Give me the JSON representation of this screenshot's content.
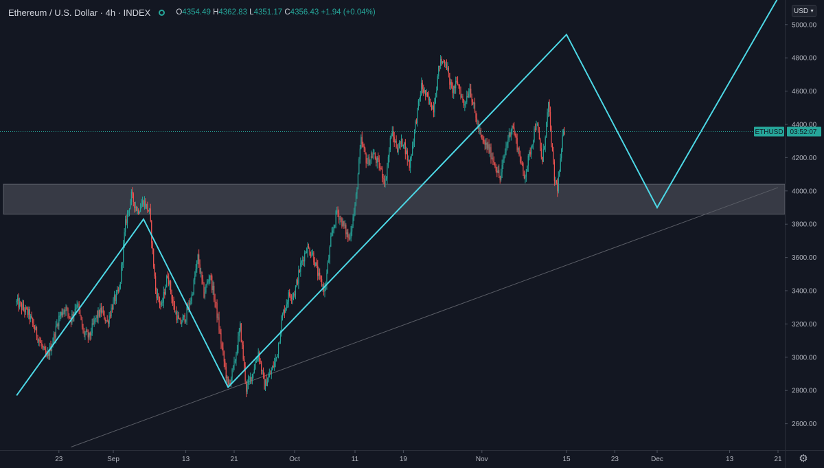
{
  "legend": {
    "symbol": "Ethereum / U.S. Dollar · 4h · INDEX",
    "open_label": "O",
    "open": "4354.49",
    "high_label": "H",
    "high": "4362.83",
    "low_label": "L",
    "low": "4351.17",
    "close_label": "C",
    "close": "4356.43",
    "change": "+1.94 (+0.04%)"
  },
  "currency_button": "USD",
  "settings_icon": "gear-icon",
  "price_tag": {
    "symbol": "ETHUSD",
    "countdown": "03:52:07",
    "color": "#26a69a"
  },
  "colors": {
    "background": "#131722",
    "up": "#26a69a",
    "down": "#ef5350",
    "zigzag": "#4dd8e6",
    "support_zone": "#3e414b",
    "trendline": "#5a5d66"
  },
  "chart_data": {
    "type": "candlestick",
    "symbol": "ETHUSD",
    "timeframe": "4h",
    "y_ticks": [
      "2600.00",
      "2800.00",
      "3000.00",
      "3200.00",
      "3400.00",
      "3600.00",
      "3800.00",
      "4000.00",
      "4200.00",
      "4400.00",
      "4600.00",
      "4800.00",
      "5000.00"
    ],
    "ylim": [
      2460,
      5145
    ],
    "x_ticks": [
      {
        "label": "23",
        "day": -9
      },
      {
        "label": "Sep",
        "day": 0
      },
      {
        "label": "13",
        "day": 12
      },
      {
        "label": "21",
        "day": 20
      },
      {
        "label": "Oct",
        "day": 30
      },
      {
        "label": "11",
        "day": 40
      },
      {
        "label": "19",
        "day": 48
      },
      {
        "label": "Nov",
        "day": 61
      },
      {
        "label": "15",
        "day": 75
      },
      {
        "label": "23",
        "day": 83
      },
      {
        "label": "Dec",
        "day": 90
      },
      {
        "label": "13",
        "day": 102
      },
      {
        "label": "21",
        "day": 110
      }
    ],
    "last_price": 4356.43,
    "price_path": [
      [
        -16,
        3330
      ],
      [
        -14,
        3260
      ],
      [
        -12,
        3080
      ],
      [
        -11,
        2990
      ],
      [
        -10,
        3100
      ],
      [
        -9,
        3240
      ],
      [
        -8,
        3300
      ],
      [
        -7,
        3230
      ],
      [
        -6,
        3330
      ],
      [
        -5,
        3150
      ],
      [
        -4,
        3120
      ],
      [
        -3,
        3230
      ],
      [
        -2,
        3280
      ],
      [
        -1,
        3210
      ],
      [
        0,
        3330
      ],
      [
        1,
        3400
      ],
      [
        2,
        3800
      ],
      [
        3,
        3970
      ],
      [
        4,
        3880
      ],
      [
        5,
        3940
      ],
      [
        6,
        3870
      ],
      [
        7,
        3400
      ],
      [
        8,
        3300
      ],
      [
        9,
        3500
      ],
      [
        10,
        3300
      ],
      [
        11,
        3200
      ],
      [
        12,
        3250
      ],
      [
        13,
        3370
      ],
      [
        14,
        3600
      ],
      [
        15,
        3380
      ],
      [
        16,
        3500
      ],
      [
        17,
        3300
      ],
      [
        18,
        3050
      ],
      [
        19,
        2820
      ],
      [
        20,
        2950
      ],
      [
        21,
        3180
      ],
      [
        22,
        2810
      ],
      [
        23,
        2900
      ],
      [
        24,
        3030
      ],
      [
        25,
        2830
      ],
      [
        26,
        2900
      ],
      [
        27,
        3000
      ],
      [
        28,
        3250
      ],
      [
        29,
        3370
      ],
      [
        30,
        3390
      ],
      [
        31,
        3550
      ],
      [
        32,
        3660
      ],
      [
        33,
        3620
      ],
      [
        34,
        3480
      ],
      [
        35,
        3400
      ],
      [
        36,
        3700
      ],
      [
        37,
        3880
      ],
      [
        38,
        3800
      ],
      [
        39,
        3710
      ],
      [
        40,
        3900
      ],
      [
        41,
        4300
      ],
      [
        42,
        4170
      ],
      [
        43,
        4220
      ],
      [
        44,
        4150
      ],
      [
        45,
        4050
      ],
      [
        46,
        4350
      ],
      [
        47,
        4260
      ],
      [
        48,
        4300
      ],
      [
        49,
        4150
      ],
      [
        50,
        4400
      ],
      [
        51,
        4630
      ],
      [
        52,
        4550
      ],
      [
        53,
        4500
      ],
      [
        54,
        4770
      ],
      [
        55,
        4780
      ],
      [
        56,
        4600
      ],
      [
        57,
        4650
      ],
      [
        58,
        4520
      ],
      [
        59,
        4620
      ],
      [
        60,
        4440
      ],
      [
        61,
        4300
      ],
      [
        62,
        4260
      ],
      [
        63,
        4180
      ],
      [
        64,
        4070
      ],
      [
        65,
        4270
      ],
      [
        66,
        4400
      ],
      [
        67,
        4250
      ],
      [
        68,
        4080
      ],
      [
        69,
        4240
      ],
      [
        70,
        4420
      ],
      [
        71,
        4170
      ],
      [
        72,
        4520
      ],
      [
        73,
        4070
      ],
      [
        73.5,
        4020
      ],
      [
        74,
        4170
      ],
      [
        74.5,
        4380
      ],
      [
        74.8,
        4356.43
      ]
    ],
    "zigzag": [
      [
        -16,
        2770
      ],
      [
        5,
        3830
      ],
      [
        19,
        2820
      ],
      [
        75,
        4940
      ],
      [
        90,
        3900
      ],
      [
        110,
        5160
      ]
    ],
    "support_zone": {
      "low": 3860,
      "high": 4040
    },
    "trendline": [
      [
        -7,
        2460
      ],
      [
        110,
        4020
      ]
    ]
  }
}
